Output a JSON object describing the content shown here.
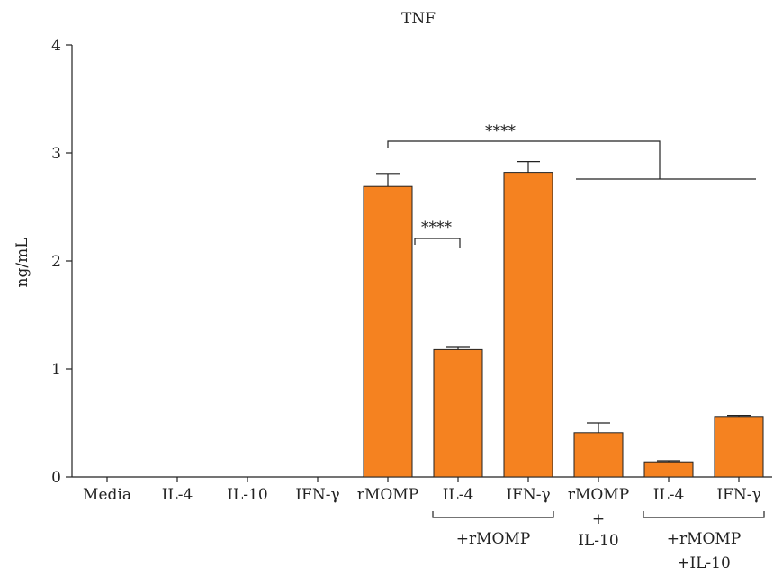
{
  "chart_data": {
    "type": "bar",
    "title": "TNF",
    "ylabel": "ng/mL",
    "xlabel": "",
    "ylim": [
      0,
      4
    ],
    "yticks": [
      "0",
      "1",
      "2",
      "3",
      "4"
    ],
    "categories": [
      "Media",
      "IL-4",
      "IL-10",
      "IFN-γ",
      "rMOMP",
      "IL-4",
      "IFN-γ",
      "rMOMP",
      "IL-4",
      "IFN-γ"
    ],
    "values": [
      0,
      0,
      0,
      0,
      2.69,
      1.18,
      2.82,
      0.41,
      0.14,
      0.56
    ],
    "errors": [
      0,
      0,
      0,
      0,
      0.12,
      0.02,
      0.1,
      0.09,
      0.01,
      0.01
    ],
    "bar_color": "#f58220",
    "group_labels": [
      {
        "lines": [
          "+rMOMP"
        ],
        "from": 5,
        "to": 6,
        "bracket": true
      },
      {
        "lines": [
          "+",
          "IL-10"
        ],
        "from": 7,
        "to": 7,
        "bracket": false
      },
      {
        "lines": [
          "+rMOMP",
          "+IL-10"
        ],
        "from": 8,
        "to": 9,
        "bracket": true
      }
    ],
    "annotations": [
      {
        "text": "****",
        "type": "rMOMP vs IL-4 + rMOMP"
      },
      {
        "text": "****",
        "type": "rMOMP vs IL-10 groups"
      }
    ]
  }
}
